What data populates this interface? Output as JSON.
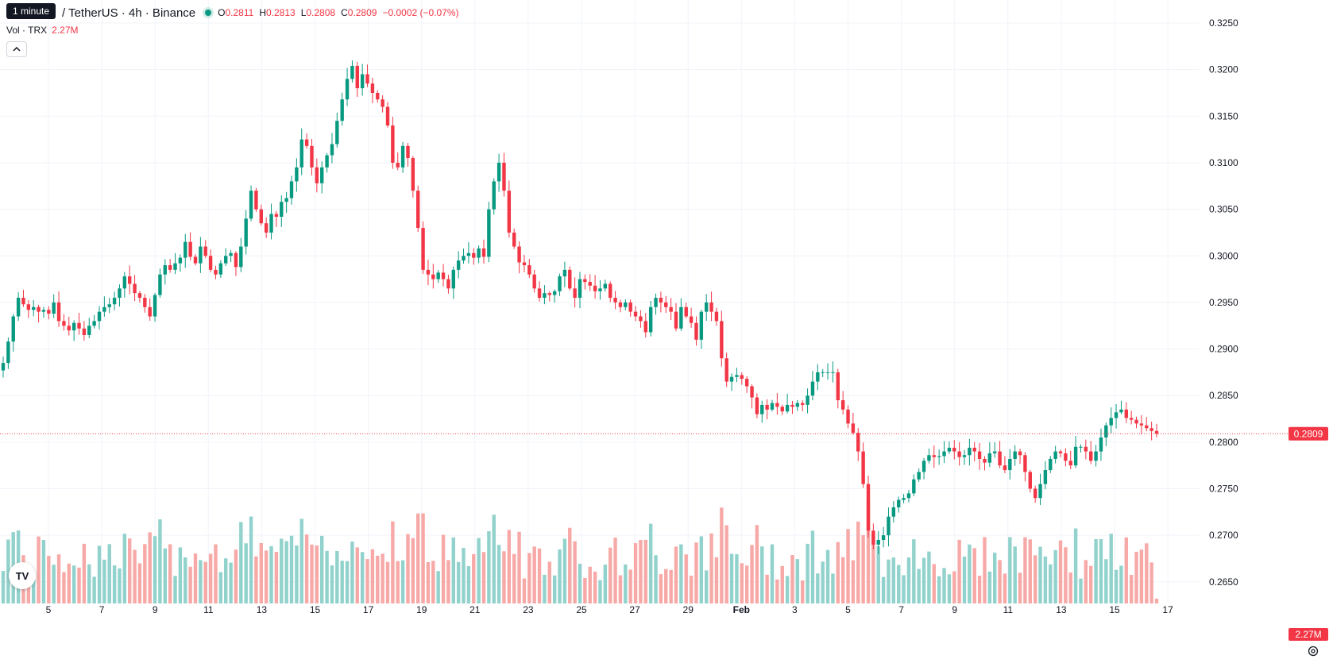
{
  "header": {
    "tooltip": "1 minute",
    "symbol": "/ TetherUS · 4h · Binance",
    "open_label": "O",
    "open": "0.2811",
    "high_label": "H",
    "high": "0.2813",
    "low_label": "L",
    "low": "0.2808",
    "close_label": "C",
    "close": "0.2809",
    "change": "−0.0002 (−0.07%)"
  },
  "volume_legend": {
    "label": "Vol · TRX",
    "value": "2.27M"
  },
  "collapse_icon": "chevron-up-icon",
  "logo_text": "TV",
  "colors": {
    "up": "#089981",
    "down": "#f23645",
    "up_vol": "#92d2cc",
    "down_vol": "#f7a9a7"
  },
  "chart_data": {
    "type": "candlestick",
    "price_axis": {
      "ticks": [
        "0.3250",
        "0.3200",
        "0.3150",
        "0.3100",
        "0.3050",
        "0.3000",
        "0.2950",
        "0.2900",
        "0.2850",
        "0.2800",
        "0.2750",
        "0.2700",
        "0.2650"
      ],
      "range": [
        0.2625,
        0.3265
      ]
    },
    "time_axis": {
      "ticks": [
        "5",
        "7",
        "9",
        "11",
        "13",
        "15",
        "17",
        "19",
        "21",
        "23",
        "25",
        "27",
        "29",
        "Feb",
        "3",
        "5",
        "7",
        "9",
        "11",
        "13",
        "15",
        "17"
      ]
    },
    "last_price": "0.2809",
    "last_volume": "2.27M",
    "closes": [
      0.2885,
      0.2908,
      0.2935,
      0.2955,
      0.2948,
      0.2942,
      0.2945,
      0.294,
      0.2942,
      0.2938,
      0.295,
      0.293,
      0.2925,
      0.292,
      0.2928,
      0.2922,
      0.2915,
      0.2925,
      0.293,
      0.294,
      0.2945,
      0.2948,
      0.2955,
      0.2965,
      0.2978,
      0.297,
      0.296,
      0.2955,
      0.2945,
      0.2935,
      0.2958,
      0.298,
      0.299,
      0.2985,
      0.2992,
      0.2998,
      0.3015,
      0.2999,
      0.2992,
      0.301,
      0.3,
      0.2985,
      0.298,
      0.2992,
      0.3,
      0.3003,
      0.2988,
      0.301,
      0.304,
      0.307,
      0.305,
      0.3035,
      0.3025,
      0.3045,
      0.3042,
      0.3058,
      0.3062,
      0.308,
      0.3095,
      0.3125,
      0.3118,
      0.3095,
      0.3078,
      0.3095,
      0.3108,
      0.312,
      0.3145,
      0.3168,
      0.319,
      0.3204,
      0.318,
      0.3195,
      0.3185,
      0.3175,
      0.3168,
      0.316,
      0.314,
      0.31,
      0.3095,
      0.3118,
      0.3105,
      0.307,
      0.303,
      0.2985,
      0.298,
      0.2975,
      0.2982,
      0.2975,
      0.2965,
      0.2985,
      0.2995,
      0.3,
      0.3003,
      0.2998,
      0.3008,
      0.2999,
      0.305,
      0.308,
      0.31,
      0.307,
      0.3025,
      0.301,
      0.2993,
      0.299,
      0.298,
      0.2965,
      0.2955,
      0.296,
      0.2958,
      0.2962,
      0.2978,
      0.2985,
      0.2965,
      0.2955,
      0.2975,
      0.2972,
      0.2968,
      0.2962,
      0.2965,
      0.297,
      0.2955,
      0.295,
      0.2945,
      0.295,
      0.294,
      0.2935,
      0.293,
      0.2918,
      0.2945,
      0.2955,
      0.295,
      0.2945,
      0.294,
      0.2922,
      0.2945,
      0.2935,
      0.2928,
      0.291,
      0.294,
      0.295,
      0.294,
      0.293,
      0.289,
      0.2865,
      0.287,
      0.2872,
      0.2868,
      0.286,
      0.2848,
      0.283,
      0.284,
      0.2835,
      0.2842,
      0.2838,
      0.2833,
      0.284,
      0.2838,
      0.2842,
      0.284,
      0.285,
      0.2865,
      0.2875,
      0.2875,
      0.2875,
      0.2875,
      0.2845,
      0.2835,
      0.282,
      0.281,
      0.279,
      0.2755,
      0.2705,
      0.269,
      0.2695,
      0.27,
      0.272,
      0.273,
      0.2738,
      0.274,
      0.2745,
      0.276,
      0.2768,
      0.278,
      0.2786,
      0.2784,
      0.2785,
      0.279,
      0.2794,
      0.279,
      0.2784,
      0.2786,
      0.2794,
      0.279,
      0.2782,
      0.2778,
      0.2788,
      0.279,
      0.2775,
      0.277,
      0.2782,
      0.279,
      0.2786,
      0.2768,
      0.275,
      0.274,
      0.2755,
      0.277,
      0.2782,
      0.279,
      0.2788,
      0.278,
      0.2775,
      0.2795,
      0.2795,
      0.279,
      0.278,
      0.279,
      0.2805,
      0.2818,
      0.2826,
      0.2832,
      0.2835,
      0.2826,
      0.2824,
      0.282,
      0.2818,
      0.2815,
      0.2812,
      0.2809
    ],
    "volume_max_label": "2.27M"
  }
}
